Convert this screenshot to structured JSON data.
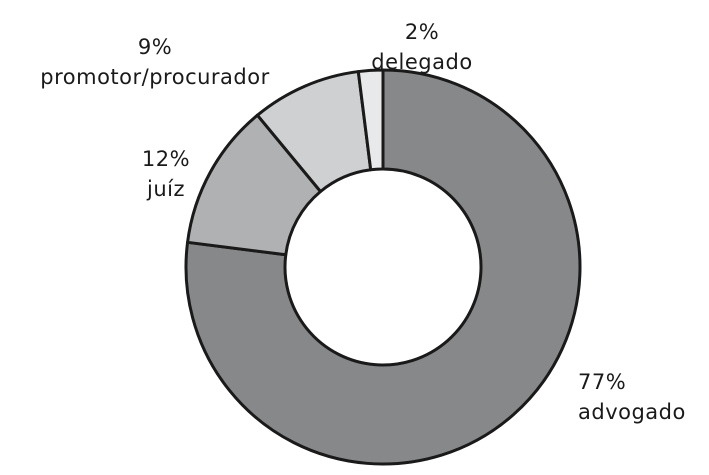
{
  "chart_data": {
    "type": "pie",
    "categories": [
      "advogado",
      "juíz",
      "promotor/procurador",
      "delegado"
    ],
    "values": [
      77,
      12,
      9,
      2
    ],
    "value_labels": [
      "77%",
      "12%",
      "9%",
      "2%"
    ],
    "colors": [
      "#87888a",
      "#b0b1b3",
      "#cfd0d2",
      "#e8e9eb"
    ]
  }
}
